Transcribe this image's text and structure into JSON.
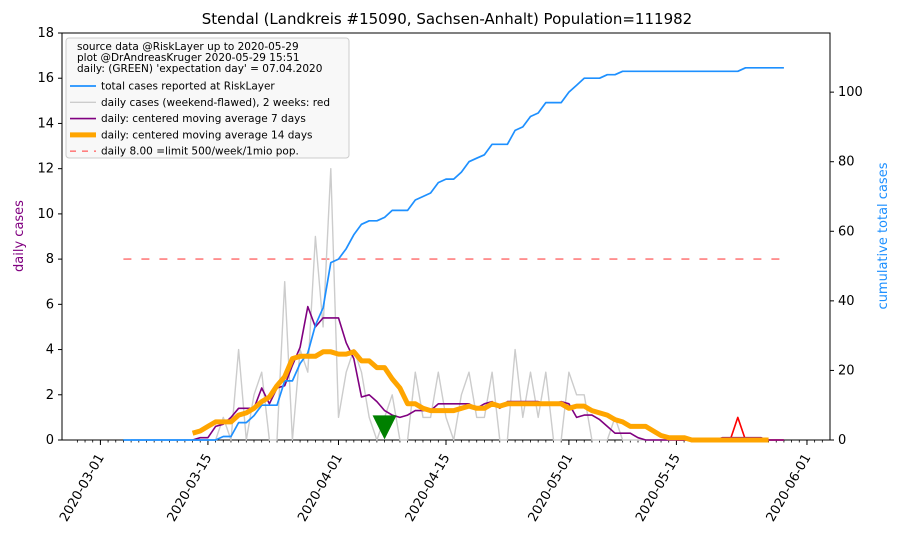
{
  "chart_data": {
    "type": "line",
    "title": "Stendal (Landkreis #15090, Sachsen-Anhalt) Population=111982",
    "ylabel_left": "daily cases",
    "ylabel_right": "cumulative total cases",
    "ylim_left": [
      0,
      18
    ],
    "ylim_right": [
      0,
      117
    ],
    "yticks_left": [
      "0",
      "2",
      "4",
      "6",
      "8",
      "10",
      "12",
      "14",
      "16",
      "18"
    ],
    "yticks_right": [
      "0",
      "20",
      "40",
      "60",
      "80",
      "100"
    ],
    "xticks": [
      "2020-03-01",
      "2020-03-15",
      "2020-04-01",
      "2020-04-15",
      "2020-05-01",
      "2020-05-15",
      "2020-06-01"
    ],
    "grid": false,
    "legend_position": "top-left",
    "legend_header": [
      "source data @RiskLayer up to 2020-05-29",
      "plot @DrAndreasKruger 2020-05-29 15:51",
      "daily: (GREEN) 'expectation day' = 07.04.2020"
    ],
    "series": [
      {
        "name": "total cases reported at RiskLayer",
        "axis": "right",
        "color": "#1e90ff",
        "x": [
          "2020-03-04",
          "2020-03-05",
          "2020-03-06",
          "2020-03-07",
          "2020-03-08",
          "2020-03-09",
          "2020-03-10",
          "2020-03-11",
          "2020-03-12",
          "2020-03-13",
          "2020-03-14",
          "2020-03-15",
          "2020-03-16",
          "2020-03-17",
          "2020-03-18",
          "2020-03-19",
          "2020-03-20",
          "2020-03-21",
          "2020-03-22",
          "2020-03-23",
          "2020-03-24",
          "2020-03-25",
          "2020-03-26",
          "2020-03-27",
          "2020-03-28",
          "2020-03-29",
          "2020-03-30",
          "2020-03-31",
          "2020-04-01",
          "2020-04-02",
          "2020-04-03",
          "2020-04-04",
          "2020-04-05",
          "2020-04-06",
          "2020-04-07",
          "2020-04-08",
          "2020-04-09",
          "2020-04-10",
          "2020-04-11",
          "2020-04-12",
          "2020-04-13",
          "2020-04-14",
          "2020-04-15",
          "2020-04-16",
          "2020-04-17",
          "2020-04-18",
          "2020-04-19",
          "2020-04-20",
          "2020-04-21",
          "2020-04-22",
          "2020-04-23",
          "2020-04-24",
          "2020-04-25",
          "2020-04-26",
          "2020-04-27",
          "2020-04-28",
          "2020-04-29",
          "2020-04-30",
          "2020-05-01",
          "2020-05-02",
          "2020-05-03",
          "2020-05-04",
          "2020-05-05",
          "2020-05-06",
          "2020-05-07",
          "2020-05-08",
          "2020-05-09",
          "2020-05-10",
          "2020-05-11",
          "2020-05-12",
          "2020-05-13",
          "2020-05-14",
          "2020-05-15",
          "2020-05-16",
          "2020-05-17",
          "2020-05-18",
          "2020-05-19",
          "2020-05-20",
          "2020-05-21",
          "2020-05-22",
          "2020-05-23",
          "2020-05-24",
          "2020-05-25",
          "2020-05-26",
          "2020-05-27",
          "2020-05-28",
          "2020-05-29"
        ],
        "values": [
          0,
          0,
          0,
          0,
          0,
          0,
          0,
          0,
          0,
          0,
          0,
          0,
          0,
          1,
          1,
          5,
          5,
          7,
          10,
          10,
          10,
          17,
          17,
          22,
          25,
          33,
          38,
          51,
          52,
          55,
          59,
          62,
          63,
          63,
          64,
          66,
          66,
          66,
          69,
          70,
          71,
          74,
          75,
          75,
          77,
          80,
          81,
          82,
          85,
          85,
          85,
          89,
          90,
          93,
          94,
          97,
          97,
          97,
          100,
          102,
          104,
          104,
          104,
          105,
          105,
          106,
          106,
          106,
          106,
          106,
          106,
          106,
          106,
          106,
          106,
          106,
          106,
          106,
          106,
          106,
          106,
          107,
          107,
          107,
          107,
          107,
          107
        ]
      },
      {
        "name": "daily cases (weekend-flawed), 2 weeks: red",
        "axis": "left",
        "color": "#cccccc",
        "recent_color": "#ff0000",
        "x": [
          "2020-03-05",
          "2020-03-06",
          "2020-03-07",
          "2020-03-08",
          "2020-03-09",
          "2020-03-10",
          "2020-03-11",
          "2020-03-12",
          "2020-03-13",
          "2020-03-14",
          "2020-03-15",
          "2020-03-16",
          "2020-03-17",
          "2020-03-18",
          "2020-03-19",
          "2020-03-20",
          "2020-03-21",
          "2020-03-22",
          "2020-03-23",
          "2020-03-24",
          "2020-03-25",
          "2020-03-26",
          "2020-03-27",
          "2020-03-28",
          "2020-03-29",
          "2020-03-30",
          "2020-03-31",
          "2020-04-01",
          "2020-04-02",
          "2020-04-03",
          "2020-04-04",
          "2020-04-05",
          "2020-04-06",
          "2020-04-07",
          "2020-04-08",
          "2020-04-09",
          "2020-04-10",
          "2020-04-11",
          "2020-04-12",
          "2020-04-13",
          "2020-04-14",
          "2020-04-15",
          "2020-04-16",
          "2020-04-17",
          "2020-04-18",
          "2020-04-19",
          "2020-04-20",
          "2020-04-21",
          "2020-04-22",
          "2020-04-23",
          "2020-04-24",
          "2020-04-25",
          "2020-04-26",
          "2020-04-27",
          "2020-04-28",
          "2020-04-29",
          "2020-04-30",
          "2020-05-01",
          "2020-05-02",
          "2020-05-03",
          "2020-05-04",
          "2020-05-05",
          "2020-05-06",
          "2020-05-07",
          "2020-05-08",
          "2020-05-09",
          "2020-05-10",
          "2020-05-11",
          "2020-05-12",
          "2020-05-13",
          "2020-05-14",
          "2020-05-15",
          "2020-05-16",
          "2020-05-17",
          "2020-05-18",
          "2020-05-19",
          "2020-05-20",
          "2020-05-21",
          "2020-05-22",
          "2020-05-23",
          "2020-05-24",
          "2020-05-25",
          "2020-05-26",
          "2020-05-27",
          "2020-05-28",
          "2020-05-29"
        ],
        "values": [
          0,
          0,
          0,
          0,
          0,
          0,
          0,
          0,
          0,
          0,
          0,
          0,
          1,
          0,
          4,
          0,
          2,
          3,
          0,
          0,
          7,
          0,
          4,
          3,
          9,
          5,
          12,
          1,
          3,
          4,
          3,
          1,
          0,
          1,
          2,
          0,
          0,
          3,
          1,
          1,
          3,
          1,
          0,
          2,
          3,
          1,
          1,
          3,
          0,
          0,
          4,
          1,
          3,
          1,
          3,
          0,
          0,
          3,
          2,
          2,
          0,
          0,
          0,
          1,
          0,
          0,
          0,
          0,
          0,
          0,
          0,
          0,
          0,
          0,
          0,
          0,
          0,
          0,
          0,
          1,
          0,
          0,
          0,
          0,
          0,
          0
        ]
      },
      {
        "name": "daily: centered moving average 7 days",
        "axis": "left",
        "color": "#800080",
        "x": [
          "2020-03-13",
          "2020-03-14",
          "2020-03-15",
          "2020-03-16",
          "2020-03-17",
          "2020-03-18",
          "2020-03-19",
          "2020-03-20",
          "2020-03-21",
          "2020-03-22",
          "2020-03-23",
          "2020-03-24",
          "2020-03-25",
          "2020-03-26",
          "2020-03-27",
          "2020-03-28",
          "2020-03-29",
          "2020-03-30",
          "2020-03-31",
          "2020-04-01",
          "2020-04-02",
          "2020-04-03",
          "2020-04-04",
          "2020-04-05",
          "2020-04-06",
          "2020-04-07",
          "2020-04-08",
          "2020-04-09",
          "2020-04-10",
          "2020-04-11",
          "2020-04-12",
          "2020-04-13",
          "2020-04-14",
          "2020-04-15",
          "2020-04-16",
          "2020-04-17",
          "2020-04-18",
          "2020-04-19",
          "2020-04-20",
          "2020-04-21",
          "2020-04-22",
          "2020-04-23",
          "2020-04-24",
          "2020-04-25",
          "2020-04-26",
          "2020-04-27",
          "2020-04-28",
          "2020-04-29",
          "2020-04-30",
          "2020-05-01",
          "2020-05-02",
          "2020-05-03",
          "2020-05-04",
          "2020-05-05",
          "2020-05-06",
          "2020-05-07",
          "2020-05-08",
          "2020-05-09",
          "2020-05-10",
          "2020-05-11",
          "2020-05-12",
          "2020-05-13",
          "2020-05-14",
          "2020-05-15",
          "2020-05-16",
          "2020-05-17",
          "2020-05-18",
          "2020-05-19",
          "2020-05-20",
          "2020-05-21",
          "2020-05-22",
          "2020-05-23",
          "2020-05-24",
          "2020-05-25",
          "2020-05-26",
          "2020-05-27",
          "2020-05-28",
          "2020-05-29"
        ],
        "values": [
          0.0,
          0.1,
          0.1,
          0.6,
          0.7,
          1.0,
          1.4,
          1.4,
          1.4,
          2.3,
          1.6,
          2.3,
          2.4,
          3.3,
          4.1,
          5.9,
          5.0,
          5.4,
          5.4,
          5.4,
          4.3,
          3.6,
          1.9,
          2.0,
          1.7,
          1.3,
          1.1,
          1.0,
          1.1,
          1.3,
          1.3,
          1.3,
          1.6,
          1.6,
          1.6,
          1.6,
          1.6,
          1.4,
          1.6,
          1.7,
          1.4,
          1.7,
          1.7,
          1.7,
          1.7,
          1.7,
          1.6,
          1.6,
          1.7,
          1.6,
          1.0,
          1.1,
          1.1,
          0.9,
          0.6,
          0.3,
          0.3,
          0.3,
          0.1,
          0.0,
          0.0,
          0.0,
          0.0,
          0.0,
          0.0,
          0.0,
          0.0,
          0.0,
          0.0,
          0.1,
          0.1,
          0.1,
          0.1,
          0.1,
          0.1,
          0.0,
          0.0,
          0.0
        ]
      },
      {
        "name": "daily: centered moving average 14 days",
        "axis": "left",
        "color": "#ffa500",
        "x": [
          "2020-03-13",
          "2020-03-14",
          "2020-03-15",
          "2020-03-16",
          "2020-03-17",
          "2020-03-18",
          "2020-03-19",
          "2020-03-20",
          "2020-03-21",
          "2020-03-22",
          "2020-03-23",
          "2020-03-24",
          "2020-03-25",
          "2020-03-26",
          "2020-03-27",
          "2020-03-28",
          "2020-03-29",
          "2020-03-30",
          "2020-03-31",
          "2020-04-01",
          "2020-04-02",
          "2020-04-03",
          "2020-04-04",
          "2020-04-05",
          "2020-04-06",
          "2020-04-07",
          "2020-04-08",
          "2020-04-09",
          "2020-04-10",
          "2020-04-11",
          "2020-04-12",
          "2020-04-13",
          "2020-04-14",
          "2020-04-15",
          "2020-04-16",
          "2020-04-17",
          "2020-04-18",
          "2020-04-19",
          "2020-04-20",
          "2020-04-21",
          "2020-04-22",
          "2020-04-23",
          "2020-04-24",
          "2020-04-25",
          "2020-04-26",
          "2020-04-27",
          "2020-04-28",
          "2020-04-29",
          "2020-04-30",
          "2020-05-01",
          "2020-05-02",
          "2020-05-03",
          "2020-05-04",
          "2020-05-05",
          "2020-05-06",
          "2020-05-07",
          "2020-05-08",
          "2020-05-09",
          "2020-05-10",
          "2020-05-11",
          "2020-05-12",
          "2020-05-13",
          "2020-05-14",
          "2020-05-15",
          "2020-05-16",
          "2020-05-17",
          "2020-05-18",
          "2020-05-19",
          "2020-05-20",
          "2020-05-21",
          "2020-05-22",
          "2020-05-23",
          "2020-05-24",
          "2020-05-25",
          "2020-05-26",
          "2020-05-27"
        ],
        "values": [
          0.3,
          0.4,
          0.6,
          0.8,
          0.8,
          0.8,
          1.1,
          1.2,
          1.4,
          1.7,
          1.9,
          2.4,
          2.8,
          3.6,
          3.7,
          3.7,
          3.7,
          3.9,
          3.9,
          3.8,
          3.8,
          3.9,
          3.5,
          3.5,
          3.2,
          3.2,
          2.7,
          2.3,
          1.6,
          1.6,
          1.4,
          1.3,
          1.3,
          1.3,
          1.3,
          1.4,
          1.5,
          1.4,
          1.4,
          1.6,
          1.5,
          1.6,
          1.6,
          1.6,
          1.6,
          1.6,
          1.6,
          1.6,
          1.6,
          1.4,
          1.5,
          1.5,
          1.3,
          1.2,
          1.1,
          0.9,
          0.8,
          0.6,
          0.6,
          0.6,
          0.4,
          0.2,
          0.1,
          0.1,
          0.1,
          0.0,
          0.0,
          0.0,
          0.0,
          0.0,
          0.0,
          0.0,
          0.0,
          0.0,
          0.0,
          0.0
        ]
      },
      {
        "name": "daily 8.00 =limit 500/week/1mio pop.",
        "axis": "left",
        "color": "#ff7f7f",
        "x": [
          "2020-03-04",
          "2020-05-29"
        ],
        "values": [
          8,
          8
        ]
      }
    ],
    "marker": {
      "x": "2020-04-07",
      "y": 0.6,
      "color": "#008000"
    }
  }
}
